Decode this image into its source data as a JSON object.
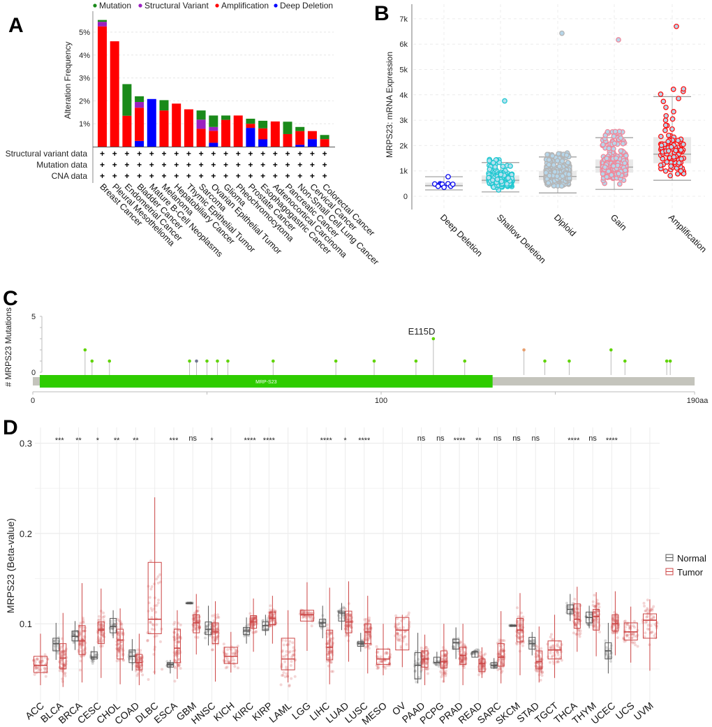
{
  "panel_letters": {
    "a": "A",
    "b": "B",
    "c": "C",
    "d": "D"
  },
  "chart_data": [
    {
      "panel": "A",
      "type": "bar",
      "stacked": true,
      "ylabel": "Alteration Frequency",
      "yticks": [
        "1%",
        "2%",
        "3%",
        "4%",
        "5%"
      ],
      "ylim": [
        0,
        5.8
      ],
      "grid": true,
      "legend_position": "top",
      "legend": [
        {
          "name": "Mutation",
          "color": "#1a8a1a"
        },
        {
          "name": "Structural Variant",
          "color": "#9a1fc0"
        },
        {
          "name": "Amplification",
          "color": "#ff0000"
        },
        {
          "name": "Deep Deletion",
          "color": "#0000ff"
        }
      ],
      "categories": [
        "Breast Cancer",
        "Pleural Mesothelioma",
        "Endometrial Cancer",
        "Bladder Cancer",
        "Mature B-Cell Neoplasms",
        "Melanoma",
        "Hepatobiliary Cancer",
        "Thymic Epithelial Tumor",
        "Sarcoma",
        "Ovarian Epithelial Tumor",
        "Glioma",
        "Pheochromocytoma",
        "Prostate Cancer",
        "Esophagogastric Cancer",
        "Adrenocortical Carcinoma",
        "Pancreatic Cancer",
        "Non-Small Cell Lung Cancer",
        "Cervical Cancer",
        "Colorectal Cancer"
      ],
      "series": [
        {
          "name": "Deep Deletion",
          "values": [
            0,
            0,
            0,
            0.25,
            2.08,
            0,
            0,
            0,
            0,
            0.17,
            0,
            0,
            0.82,
            0.32,
            0,
            0,
            0.08,
            0.33,
            0
          ]
        },
        {
          "name": "Amplification",
          "values": [
            5.25,
            4.6,
            1.35,
            1.45,
            0,
            1.58,
            1.88,
            1.63,
            0.78,
            0.52,
            1.17,
            1.36,
            0.18,
            0.48,
            1.1,
            0.55,
            0.6,
            0.35,
            0.33
          ]
        },
        {
          "name": "Structural Variant",
          "values": [
            0.2,
            0,
            0,
            0.25,
            0,
            0,
            0,
            0,
            0.4,
            0.17,
            0,
            0,
            0,
            0,
            0,
            0,
            0,
            0,
            0
          ]
        },
        {
          "name": "Mutation",
          "values": [
            0.08,
            0,
            1.38,
            0.25,
            0,
            0.45,
            0,
            0,
            0.4,
            0.5,
            0.19,
            0,
            0.22,
            0.33,
            0,
            0.54,
            0.18,
            0,
            0.18
          ]
        }
      ],
      "data_rows": [
        "Structural variant data",
        "Mutation data",
        "CNA data"
      ],
      "row_marker": "+"
    },
    {
      "panel": "B",
      "type": "scatter",
      "ylabel": "MRPS23: mRNA Expression",
      "yticks": [
        "0",
        "1k",
        "2k",
        "3k",
        "4k",
        "5k",
        "6k",
        "7k"
      ],
      "ylim": [
        -400,
        7500
      ],
      "grid": true,
      "categories": [
        "Deep Deletion",
        "Shallow Deletion",
        "Diploid",
        "Gain",
        "Amplification"
      ],
      "colors": [
        {
          "stroke": "#0000ee",
          "fill": "#ffffff"
        },
        {
          "stroke": "#20c8d0",
          "fill": "#b6e0f0"
        },
        {
          "stroke": "#b4b4b4",
          "fill": "#b6d6ea"
        },
        {
          "stroke": "#f0889a",
          "fill": "#b6d6ea"
        },
        {
          "stroke": "#ff1010",
          "fill": "#b6d6ea"
        }
      ],
      "box_stats": [
        {
          "min": 250,
          "q1": 360,
          "median": 420,
          "q3": 540,
          "max": 770
        },
        {
          "min": 170,
          "q1": 500,
          "median": 630,
          "q3": 820,
          "max": 1330
        },
        {
          "min": 130,
          "q1": 640,
          "median": 780,
          "q3": 1000,
          "max": 1550
        },
        {
          "min": 270,
          "q1": 930,
          "median": 1150,
          "q3": 1450,
          "max": 2310
        },
        {
          "min": 630,
          "q1": 1300,
          "median": 1660,
          "q3": 2330,
          "max": 3930
        }
      ],
      "max_points": [
        770,
        3760,
        6430,
        6170,
        6700
      ]
    },
    {
      "panel": "C",
      "type": "lollipop",
      "ylabel": "# MRPS23 Mutations",
      "yticks": [
        "0",
        "5"
      ],
      "ylim": [
        0,
        5
      ],
      "xticks": [
        "0",
        "100",
        "190aa"
      ],
      "protein_length": 190,
      "domain": {
        "name": "MRP-S23",
        "start": 2,
        "end": 132,
        "color": "#2ecc00"
      },
      "highlight_label": "E115D",
      "mutations": [
        {
          "pos": 15,
          "count": 2,
          "color": "#5fd400"
        },
        {
          "pos": 17,
          "count": 1,
          "color": "#5fd400"
        },
        {
          "pos": 22,
          "count": 1,
          "color": "#5fd400"
        },
        {
          "pos": 45,
          "count": 1,
          "color": "#5fd400"
        },
        {
          "pos": 47,
          "count": 1,
          "color": "#707890"
        },
        {
          "pos": 50,
          "count": 1,
          "color": "#5fd400"
        },
        {
          "pos": 53,
          "count": 1,
          "color": "#5fd400"
        },
        {
          "pos": 56,
          "count": 1,
          "color": "#5fd400"
        },
        {
          "pos": 69,
          "count": 1,
          "color": "#5fd400"
        },
        {
          "pos": 87,
          "count": 1,
          "color": "#5fd400"
        },
        {
          "pos": 98,
          "count": 1,
          "color": "#5fd400"
        },
        {
          "pos": 110,
          "count": 1,
          "color": "#5fd400"
        },
        {
          "pos": 115,
          "count": 3,
          "color": "#5fd400"
        },
        {
          "pos": 124,
          "count": 1,
          "color": "#5fd400"
        },
        {
          "pos": 141,
          "count": 2,
          "color": "#e8a070"
        },
        {
          "pos": 147,
          "count": 1,
          "color": "#5fd400"
        },
        {
          "pos": 154,
          "count": 1,
          "color": "#5fd400"
        },
        {
          "pos": 166,
          "count": 2,
          "color": "#5fd400"
        },
        {
          "pos": 170,
          "count": 1,
          "color": "#5fd400"
        },
        {
          "pos": 182,
          "count": 1,
          "color": "#5fd400"
        },
        {
          "pos": 183,
          "count": 1,
          "color": "#5fd400"
        }
      ]
    },
    {
      "panel": "D",
      "type": "box",
      "ylabel": "MRPS23 (Beta-value)",
      "yticks": [
        "0.1",
        "0.2",
        "0.3"
      ],
      "ylim": [
        0.013,
        0.315
      ],
      "grid": true,
      "legend_position": "right",
      "legend": [
        {
          "name": "Normal",
          "color": "#555555"
        },
        {
          "name": "Tumor",
          "color": "#cc4444"
        }
      ],
      "groups": [
        {
          "type": "ACC",
          "sig": "",
          "normal": null,
          "tumor": [
            0.032,
            0.046,
            0.054,
            0.064,
            0.089
          ]
        },
        {
          "type": "BLCA",
          "sig": "***",
          "normal": [
            0.06,
            0.07,
            0.078,
            0.084,
            0.101
          ],
          "tumor": [
            0.03,
            0.05,
            0.062,
            0.078,
            0.112
          ]
        },
        {
          "type": "BRCA",
          "sig": "**",
          "normal": [
            0.071,
            0.081,
            0.086,
            0.092,
            0.103
          ],
          "tumor": [
            0.035,
            0.066,
            0.081,
            0.098,
            0.145
          ]
        },
        {
          "type": "CESC",
          "sig": "*",
          "normal": [
            0.06,
            0.061,
            0.063,
            0.069,
            0.075
          ],
          "tumor": [
            0.04,
            0.078,
            0.093,
            0.102,
            0.139
          ]
        },
        {
          "type": "CHOL",
          "sig": "**",
          "normal": [
            0.084,
            0.09,
            0.097,
            0.106,
            0.115
          ],
          "tumor": [
            0.033,
            0.061,
            0.082,
            0.094,
            0.117
          ]
        },
        {
          "type": "COAD",
          "sig": "**",
          "normal": [
            0.048,
            0.057,
            0.064,
            0.071,
            0.083
          ],
          "tumor": [
            0.032,
            0.049,
            0.057,
            0.066,
            0.089
          ]
        },
        {
          "type": "DLBC",
          "sig": "",
          "normal": null,
          "tumor": [
            0.044,
            0.089,
            0.105,
            0.168,
            0.24
          ]
        },
        {
          "type": "ESCA",
          "sig": "***",
          "normal": [
            0.045,
            0.052,
            0.055,
            0.057,
            0.06
          ],
          "tumor": [
            0.039,
            0.057,
            0.073,
            0.094,
            0.115
          ]
        },
        {
          "type": "GBM",
          "sig": "ns",
          "normal": [
            0.123,
            0.123,
            0.123,
            0.123,
            0.123
          ],
          "tumor": [
            0.066,
            0.09,
            0.101,
            0.11,
            0.133
          ]
        },
        {
          "type": "HNSC",
          "sig": "*",
          "normal": [
            0.076,
            0.088,
            0.094,
            0.102,
            0.12
          ],
          "tumor": [
            0.036,
            0.078,
            0.091,
            0.101,
            0.125
          ]
        },
        {
          "type": "KICH",
          "sig": "",
          "normal": null,
          "tumor": [
            0.046,
            0.056,
            0.064,
            0.074,
            0.091
          ]
        },
        {
          "type": "KIRC",
          "sig": "****",
          "normal": [
            0.078,
            0.088,
            0.092,
            0.096,
            0.107
          ],
          "tumor": [
            0.069,
            0.095,
            0.102,
            0.109,
            0.128
          ]
        },
        {
          "type": "KIRP",
          "sig": "****",
          "normal": [
            0.087,
            0.093,
            0.098,
            0.102,
            0.11
          ],
          "tumor": [
            0.078,
            0.099,
            0.106,
            0.113,
            0.131
          ]
        },
        {
          "type": "LAML",
          "sig": "",
          "normal": null,
          "tumor": [
            0.035,
            0.049,
            0.061,
            0.084,
            0.115
          ]
        },
        {
          "type": "LGG",
          "sig": "",
          "normal": null,
          "tumor": [
            0.07,
            0.103,
            0.11,
            0.115,
            0.146
          ]
        },
        {
          "type": "LIHC",
          "sig": "****",
          "normal": [
            0.084,
            0.097,
            0.101,
            0.105,
            0.12
          ],
          "tumor": [
            0.033,
            0.06,
            0.074,
            0.093,
            0.14
          ]
        },
        {
          "type": "LUAD",
          "sig": "*",
          "normal": [
            0.093,
            0.103,
            0.112,
            0.114,
            0.123
          ],
          "tumor": [
            0.058,
            0.09,
            0.102,
            0.114,
            0.147
          ]
        },
        {
          "type": "LUSC",
          "sig": "****",
          "normal": [
            0.069,
            0.075,
            0.078,
            0.08,
            0.09
          ],
          "tumor": [
            0.045,
            0.078,
            0.091,
            0.1,
            0.131
          ]
        },
        {
          "type": "MESO",
          "sig": "",
          "normal": null,
          "tumor": [
            0.043,
            0.055,
            0.061,
            0.072,
            0.1
          ]
        },
        {
          "type": "OV",
          "sig": "",
          "normal": null,
          "tumor": [
            0.052,
            0.071,
            0.093,
            0.107,
            0.11
          ]
        },
        {
          "type": "PAAD",
          "sig": "ns",
          "normal": [
            0.034,
            0.039,
            0.054,
            0.068,
            0.09
          ],
          "tumor": [
            0.032,
            0.052,
            0.061,
            0.07,
            0.088
          ]
        },
        {
          "type": "PCPG",
          "sig": "ns",
          "normal": [
            0.057,
            0.057,
            0.057,
            0.063,
            0.069
          ],
          "tumor": [
            0.035,
            0.051,
            0.058,
            0.07,
            0.1
          ]
        },
        {
          "type": "PRAD",
          "sig": "****",
          "normal": [
            0.061,
            0.072,
            0.079,
            0.083,
            0.096
          ],
          "tumor": [
            0.032,
            0.055,
            0.065,
            0.074,
            0.1
          ]
        },
        {
          "type": "READ",
          "sig": "**",
          "normal": [
            0.063,
            0.063,
            0.069,
            0.069,
            0.069
          ],
          "tumor": [
            0.04,
            0.047,
            0.056,
            0.061,
            0.074
          ]
        },
        {
          "type": "SARC",
          "sig": "ns",
          "normal": [
            0.05,
            0.051,
            0.054,
            0.057,
            0.062
          ],
          "tumor": [
            0.034,
            0.053,
            0.063,
            0.078,
            0.114
          ]
        },
        {
          "type": "SKCM",
          "sig": "ns",
          "normal": [
            0.098,
            0.098,
            0.098,
            0.098,
            0.098
          ],
          "tumor": [
            0.043,
            0.08,
            0.093,
            0.106,
            0.134
          ]
        },
        {
          "type": "STAD",
          "sig": "ns",
          "normal": [
            0.065,
            0.072,
            0.078,
            0.085,
            0.091
          ],
          "tumor": [
            0.035,
            0.05,
            0.058,
            0.07,
            0.097
          ]
        },
        {
          "type": "TGCT",
          "sig": "",
          "normal": null,
          "tumor": [
            0.04,
            0.061,
            0.071,
            0.081,
            0.11
          ]
        },
        {
          "type": "THCA",
          "sig": "****",
          "normal": [
            0.103,
            0.111,
            0.116,
            0.121,
            0.133
          ],
          "tumor": [
            0.069,
            0.095,
            0.105,
            0.122,
            0.141
          ]
        },
        {
          "type": "THYM",
          "sig": "ns",
          "normal": [
            0.095,
            0.101,
            0.107,
            0.113,
            0.12
          ],
          "tumor": [
            0.064,
            0.093,
            0.108,
            0.116,
            0.135
          ]
        },
        {
          "type": "UCEC",
          "sig": "****",
          "normal": [
            0.045,
            0.061,
            0.07,
            0.079,
            0.101
          ],
          "tumor": [
            0.065,
            0.092,
            0.1,
            0.11,
            0.136
          ]
        },
        {
          "type": "UCS",
          "sig": "",
          "normal": null,
          "tumor": [
            0.057,
            0.082,
            0.091,
            0.101,
            0.119
          ]
        },
        {
          "type": "UVM",
          "sig": "",
          "normal": null,
          "tumor": [
            0.048,
            0.084,
            0.104,
            0.111,
            0.127
          ]
        }
      ]
    }
  ]
}
